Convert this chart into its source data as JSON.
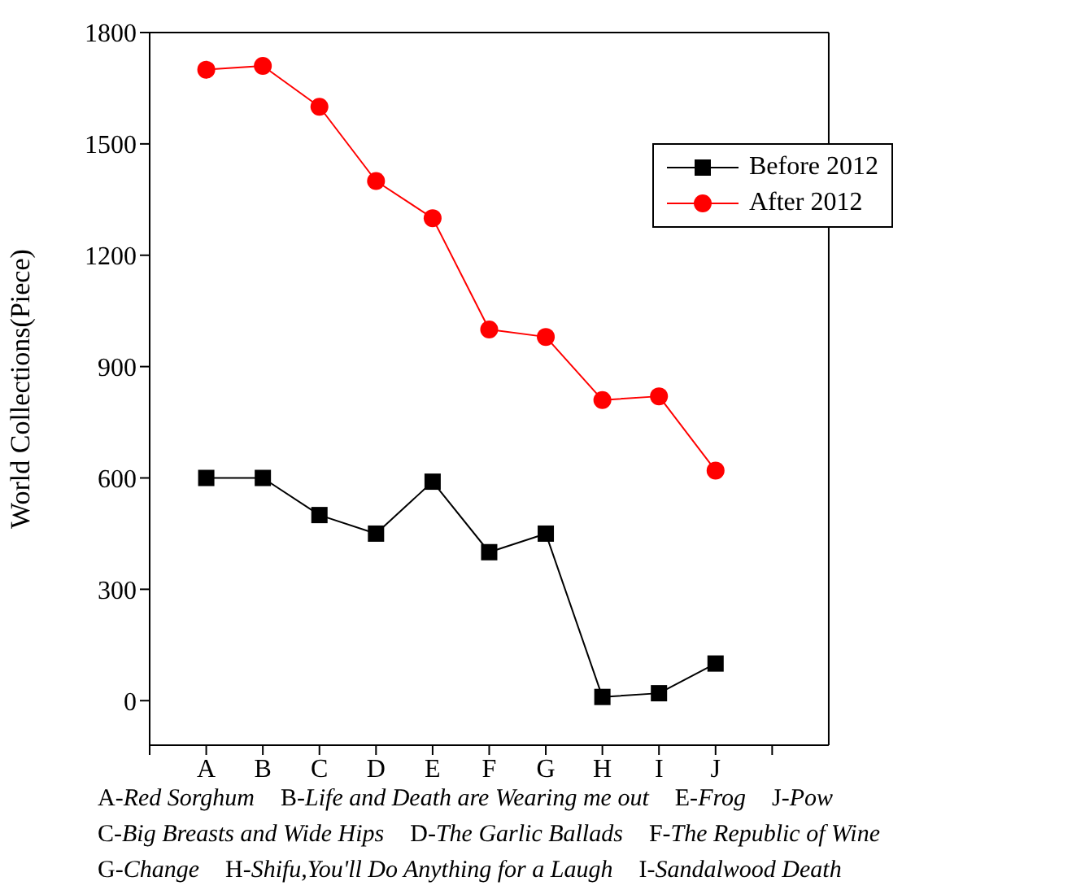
{
  "chart_data": {
    "type": "line",
    "ylabel": "World Collections(Piece)",
    "categories": [
      null,
      "A",
      "B",
      "C",
      "D",
      "E",
      "F",
      "G",
      "H",
      "I",
      "J",
      null,
      null
    ],
    "series": [
      {
        "name": "Before 2012",
        "color": "#000000",
        "marker": "square",
        "values": [
          null,
          600,
          600,
          500,
          450,
          590,
          400,
          450,
          10,
          20,
          100,
          null,
          null
        ]
      },
      {
        "name": "After 2012",
        "color": "#ff0000",
        "marker": "circle",
        "values": [
          null,
          1700,
          1710,
          1600,
          1400,
          1300,
          1000,
          980,
          810,
          820,
          620,
          null,
          null
        ]
      }
    ],
    "ylim": [
      -120,
      1800
    ],
    "yticks": [
      0,
      300,
      600,
      900,
      1200,
      1500,
      1800
    ],
    "legend": "top right",
    "annotations": [
      "A-Red Sorghum",
      "B-Life and Death are Wearing me out",
      "E-Frog",
      "J-Pow",
      "C-Big Breasts and Wide Hips",
      "D-The Garlic Ballads",
      "F-The Republic of Wine",
      "G-Change",
      "H-Shifu,You'll Do Anything for a Laugh",
      "I-Sandalwood Death"
    ]
  }
}
